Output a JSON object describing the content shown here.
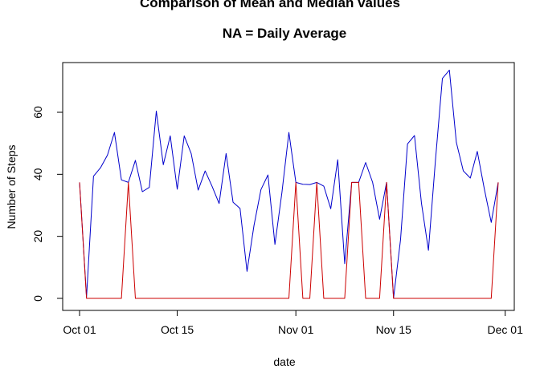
{
  "chart_data": {
    "type": "line",
    "title": "Comparison of Mean and Median values",
    "subtitle": "NA = Daily Average",
    "xlabel": "date",
    "ylabel": "Number of Steps",
    "x_axis": {
      "type": "date",
      "range": [
        "2012-10-01",
        "2012-11-30"
      ],
      "ticks": [
        {
          "date": "2012-10-01",
          "label": "Oct 01"
        },
        {
          "date": "2012-10-15",
          "label": "Oct 15"
        },
        {
          "date": "2012-11-01",
          "label": "Nov 01"
        },
        {
          "date": "2012-11-15",
          "label": "Nov 15"
        },
        {
          "date": "2012-12-01",
          "label": "Dec 01"
        }
      ]
    },
    "ylim": [
      0,
      73.6
    ],
    "y_ticks": [
      0,
      20,
      40,
      60
    ],
    "grid": false,
    "series": [
      {
        "color": "#0000cc",
        "x": [
          "2012-10-01",
          "2012-10-02",
          "2012-10-03",
          "2012-10-04",
          "2012-10-05",
          "2012-10-06",
          "2012-10-07",
          "2012-10-08",
          "2012-10-09",
          "2012-10-10",
          "2012-10-11",
          "2012-10-12",
          "2012-10-13",
          "2012-10-14",
          "2012-10-15",
          "2012-10-16",
          "2012-10-17",
          "2012-10-18",
          "2012-10-19",
          "2012-10-20",
          "2012-10-21",
          "2012-10-22",
          "2012-10-23",
          "2012-10-24",
          "2012-10-25",
          "2012-10-26",
          "2012-10-27",
          "2012-10-28",
          "2012-10-29",
          "2012-10-30",
          "2012-10-31",
          "2012-11-01",
          "2012-11-02",
          "2012-11-03",
          "2012-11-04",
          "2012-11-05",
          "2012-11-06",
          "2012-11-07",
          "2012-11-08",
          "2012-11-09",
          "2012-11-10",
          "2012-11-11",
          "2012-11-12",
          "2012-11-13",
          "2012-11-14",
          "2012-11-15",
          "2012-11-16",
          "2012-11-17",
          "2012-11-18",
          "2012-11-19",
          "2012-11-20",
          "2012-11-21",
          "2012-11-22",
          "2012-11-23",
          "2012-11-24",
          "2012-11-25",
          "2012-11-26",
          "2012-11-27",
          "2012-11-28",
          "2012-11-29",
          "2012-11-30"
        ],
        "values": [
          37.4,
          0.4,
          39.4,
          42.1,
          46.2,
          53.5,
          38.2,
          37.4,
          44.5,
          34.4,
          35.8,
          60.4,
          43.1,
          52.4,
          35.2,
          52.4,
          46.7,
          34.9,
          41.1,
          36.1,
          30.6,
          46.7,
          31.0,
          29.0,
          8.7,
          23.5,
          35.1,
          39.8,
          17.4,
          34.1,
          53.5,
          37.4,
          36.8,
          36.7,
          37.4,
          36.2,
          28.9,
          44.7,
          11.2,
          37.4,
          37.4,
          43.8,
          37.4,
          25.5,
          37.4,
          0.1,
          18.9,
          49.8,
          52.5,
          30.7,
          15.5,
          44.4,
          70.9,
          73.6,
          50.3,
          41.1,
          38.8,
          47.4,
          35.4,
          24.5,
          37.4
        ]
      },
      {
        "color": "#cc0000",
        "x": [
          "2012-10-01",
          "2012-10-02",
          "2012-10-03",
          "2012-10-04",
          "2012-10-05",
          "2012-10-06",
          "2012-10-07",
          "2012-10-08",
          "2012-10-09",
          "2012-10-10",
          "2012-10-11",
          "2012-10-12",
          "2012-10-13",
          "2012-10-14",
          "2012-10-15",
          "2012-10-16",
          "2012-10-17",
          "2012-10-18",
          "2012-10-19",
          "2012-10-20",
          "2012-10-21",
          "2012-10-22",
          "2012-10-23",
          "2012-10-24",
          "2012-10-25",
          "2012-10-26",
          "2012-10-27",
          "2012-10-28",
          "2012-10-29",
          "2012-10-30",
          "2012-10-31",
          "2012-11-01",
          "2012-11-02",
          "2012-11-03",
          "2012-11-04",
          "2012-11-05",
          "2012-11-06",
          "2012-11-07",
          "2012-11-08",
          "2012-11-09",
          "2012-11-10",
          "2012-11-11",
          "2012-11-12",
          "2012-11-13",
          "2012-11-14",
          "2012-11-15",
          "2012-11-16",
          "2012-11-17",
          "2012-11-18",
          "2012-11-19",
          "2012-11-20",
          "2012-11-21",
          "2012-11-22",
          "2012-11-23",
          "2012-11-24",
          "2012-11-25",
          "2012-11-26",
          "2012-11-27",
          "2012-11-28",
          "2012-11-29",
          "2012-11-30"
        ],
        "values": [
          37.4,
          0,
          0,
          0,
          0,
          0,
          0,
          37.4,
          0,
          0,
          0,
          0,
          0,
          0,
          0,
          0,
          0,
          0,
          0,
          0,
          0,
          0,
          0,
          0,
          0,
          0,
          0,
          0,
          0,
          0,
          0,
          37.4,
          0,
          0,
          37.4,
          0,
          0,
          0,
          0,
          37.4,
          37.4,
          0,
          0,
          0,
          37.4,
          0,
          0,
          0,
          0,
          0,
          0,
          0,
          0,
          0,
          0,
          0,
          0,
          0,
          0,
          0,
          37.4
        ]
      }
    ]
  }
}
